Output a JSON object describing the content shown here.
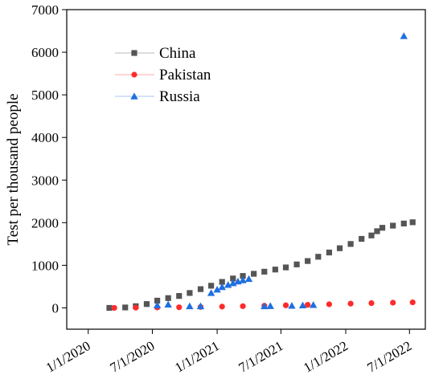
{
  "chart_data": {
    "type": "scatter",
    "ylabel": "Test per thousand people",
    "xlim": [
      "2019-11-01",
      "2022-08-15"
    ],
    "ylim": [
      -500,
      7000
    ],
    "yticks": [
      0,
      1000,
      2000,
      3000,
      4000,
      5000,
      6000,
      7000
    ],
    "xticks": [
      "2020-01-01",
      "2020-07-01",
      "2021-01-01",
      "2021-07-01",
      "2022-01-01",
      "2022-07-01"
    ],
    "xtick_labels": [
      "1/1/2020",
      "7/1/2020",
      "1/1/2021",
      "7/1/2021",
      "1/1/2022",
      "7/1/2022"
    ],
    "legend_position": "top-left",
    "series": [
      {
        "name": "China",
        "marker": "square",
        "color": "#555555",
        "points": [
          [
            "2020-03-01",
            0
          ],
          [
            "2020-04-15",
            10
          ],
          [
            "2020-05-15",
            40
          ],
          [
            "2020-06-15",
            90
          ],
          [
            "2020-07-15",
            170
          ],
          [
            "2020-08-15",
            230
          ],
          [
            "2020-09-15",
            280
          ],
          [
            "2020-10-15",
            350
          ],
          [
            "2020-11-15",
            440
          ],
          [
            "2020-12-15",
            520
          ],
          [
            "2021-01-15",
            610
          ],
          [
            "2021-02-15",
            690
          ],
          [
            "2021-03-15",
            750
          ],
          [
            "2021-04-15",
            800
          ],
          [
            "2021-05-15",
            850
          ],
          [
            "2021-06-15",
            900
          ],
          [
            "2021-07-15",
            950
          ],
          [
            "2021-08-15",
            1020
          ],
          [
            "2021-09-15",
            1100
          ],
          [
            "2021-10-15",
            1200
          ],
          [
            "2021-11-15",
            1300
          ],
          [
            "2021-12-15",
            1400
          ],
          [
            "2022-01-15",
            1500
          ],
          [
            "2022-02-15",
            1620
          ],
          [
            "2022-03-15",
            1700
          ],
          [
            "2022-03-31",
            1800
          ],
          [
            "2022-04-15",
            1880
          ],
          [
            "2022-05-15",
            1930
          ],
          [
            "2022-06-15",
            1980
          ],
          [
            "2022-07-10",
            2010
          ]
        ]
      },
      {
        "name": "Pakistan",
        "marker": "circle",
        "color": "#ff2b2b",
        "points": [
          [
            "2020-03-15",
            0
          ],
          [
            "2020-05-15",
            5
          ],
          [
            "2020-07-15",
            10
          ],
          [
            "2020-09-15",
            15
          ],
          [
            "2020-11-15",
            22
          ],
          [
            "2021-01-15",
            30
          ],
          [
            "2021-03-15",
            40
          ],
          [
            "2021-05-15",
            50
          ],
          [
            "2021-07-15",
            60
          ],
          [
            "2021-09-15",
            72
          ],
          [
            "2021-11-15",
            85
          ],
          [
            "2022-01-15",
            100
          ],
          [
            "2022-03-15",
            112
          ],
          [
            "2022-05-15",
            122
          ],
          [
            "2022-07-10",
            130
          ]
        ]
      },
      {
        "name": "Russia",
        "marker": "triangle",
        "color": "#1f6fe0",
        "points": [
          [
            "2020-07-15",
            60
          ],
          [
            "2020-08-15",
            80
          ],
          [
            "2020-10-15",
            40
          ],
          [
            "2020-11-15",
            40
          ],
          [
            "2020-12-15",
            350
          ],
          [
            "2021-01-01",
            430
          ],
          [
            "2021-01-15",
            490
          ],
          [
            "2021-02-01",
            540
          ],
          [
            "2021-02-15",
            580
          ],
          [
            "2021-03-01",
            620
          ],
          [
            "2021-03-15",
            650
          ],
          [
            "2021-04-01",
            680
          ],
          [
            "2021-05-15",
            40
          ],
          [
            "2021-06-01",
            45
          ],
          [
            "2021-08-01",
            50
          ],
          [
            "2021-09-01",
            60
          ],
          [
            "2021-10-01",
            70
          ],
          [
            "2022-06-15",
            6380
          ]
        ]
      }
    ]
  }
}
